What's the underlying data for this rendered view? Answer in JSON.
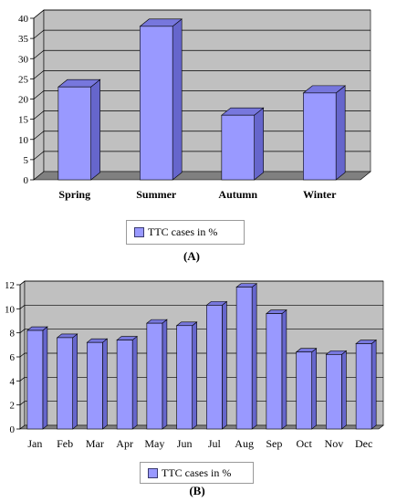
{
  "chart_data": [
    {
      "type": "bar",
      "panel_label": "(A)",
      "categories": [
        "Spring",
        "Summer",
        "Autumn",
        "Winter"
      ],
      "series": [
        {
          "name": "TTC cases in %",
          "values": [
            23,
            38,
            16,
            21.5
          ]
        }
      ],
      "ylim": [
        0,
        40
      ],
      "yticks": [
        0,
        5,
        10,
        15,
        20,
        25,
        30,
        35,
        40
      ],
      "grid": true,
      "legend": "bottom",
      "colors": {
        "bar_front": "#9999ff",
        "bar_side": "#6666cc",
        "bar_top": "#7777dd",
        "wall": "#c0c0c0",
        "floor": "#808080"
      }
    },
    {
      "type": "bar",
      "panel_label": "(B)",
      "categories": [
        "Jan",
        "Feb",
        "Mar",
        "Apr",
        "May",
        "Jun",
        "Jul",
        "Aug",
        "Sep",
        "Oct",
        "Nov",
        "Dec"
      ],
      "series": [
        {
          "name": "TTC cases in %",
          "values": [
            8.2,
            7.6,
            7.2,
            7.4,
            8.8,
            8.6,
            10.3,
            11.8,
            9.6,
            6.4,
            6.2,
            7.1
          ]
        }
      ],
      "ylim": [
        0,
        12
      ],
      "yticks": [
        0,
        2,
        4,
        6,
        8,
        10,
        12
      ],
      "grid": true,
      "legend": "bottom",
      "colors": {
        "bar_front": "#9999ff",
        "bar_side": "#6666cc",
        "bar_top": "#7777dd",
        "wall": "#c0c0c0",
        "floor": "#808080"
      }
    }
  ]
}
